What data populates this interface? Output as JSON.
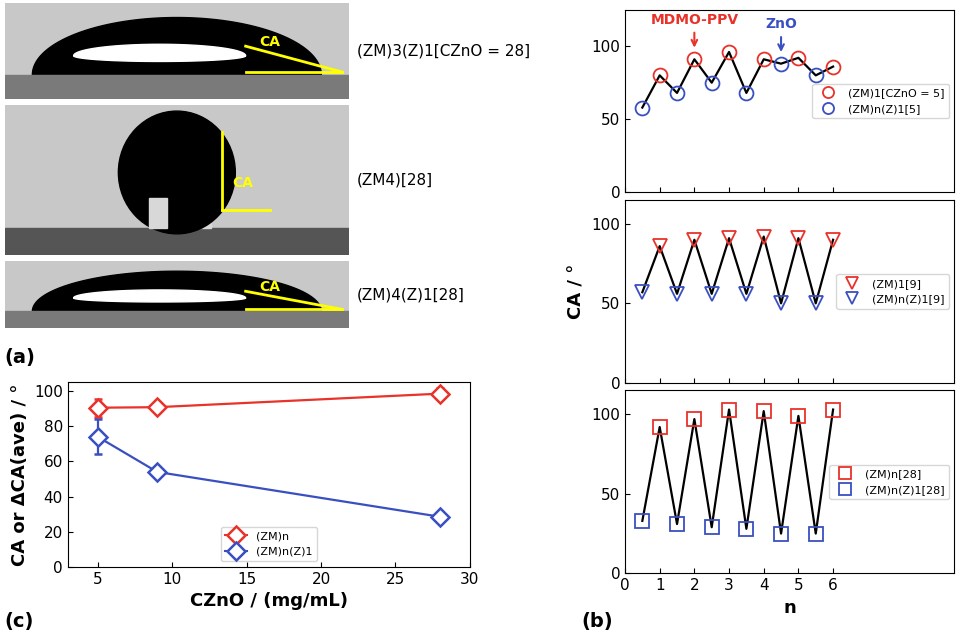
{
  "images": {
    "panel_label": "(a)",
    "items": [
      {
        "label": "(ZM)3(Z)1[CZnO = 28]",
        "angle_label": "CA"
      },
      {
        "label": "(ZM4)[28]",
        "angle_label": "CA"
      },
      {
        "label": "(ZM)4(Z)1[28]",
        "angle_label": "CA"
      }
    ]
  },
  "chart_data": [
    {
      "type": "line",
      "panel_label": "(c)",
      "xlabel": "CZnO / (mg/mL)",
      "ylabel": "CA or ΔCA(ave) / °",
      "xlim": [
        3,
        30
      ],
      "xticks": [
        5,
        10,
        15,
        20,
        25,
        30
      ],
      "ylim": [
        0,
        105
      ],
      "yticks": [
        0,
        20,
        40,
        60,
        80,
        100
      ],
      "legend": "lower center",
      "series": [
        {
          "name": "(ZM)n",
          "color": "#e8322a",
          "marker": "diamond",
          "line_style": "solid",
          "x": [
            5,
            9,
            28
          ],
          "values": [
            90.5,
            90.8,
            98.5
          ],
          "errors": [
            5,
            2,
            3
          ]
        },
        {
          "name": "(ZM)n(Z)1",
          "color": "#3a4fc0",
          "marker": "diamond",
          "line_style": "solid",
          "x": [
            5,
            9,
            28
          ],
          "values": [
            74,
            54,
            28.5
          ],
          "errors": [
            10,
            2,
            2
          ]
        }
      ]
    },
    {
      "type": "scatter",
      "line_style": "solid",
      "color": "#000000",
      "xlim": [
        0,
        9.5
      ],
      "xticks": [
        0,
        1,
        2,
        3,
        4,
        5,
        6
      ],
      "ylim": [
        0,
        125
      ],
      "yticks": [
        0,
        50,
        100
      ],
      "tick_labels": "y",
      "legend": "center right",
      "annotations": [
        {
          "text": "MDMO-PPV",
          "x": 2,
          "color": "#e8322a"
        },
        {
          "text": "ZnO",
          "x": 4.5,
          "color": "#3a4fc0"
        }
      ],
      "series": [
        {
          "name": "(ZM)1[CZnO = 5]",
          "color": "#e8322a",
          "marker": "circle",
          "x": [
            1,
            2,
            3,
            4,
            5,
            6
          ],
          "values": [
            80,
            91,
            96,
            91,
            92,
            86
          ]
        },
        {
          "name": "(ZM)n(Z)1[5]",
          "color": "#3a4fc0",
          "marker": "circle",
          "x": [
            0.5,
            1.5,
            2.5,
            3.5,
            4.5,
            5.5
          ],
          "values": [
            58,
            68,
            75,
            68,
            88,
            80
          ]
        }
      ]
    },
    {
      "type": "scatter",
      "line_style": "solid",
      "color": "#000000",
      "ylabel": "CA / °",
      "xlim": [
        0,
        9.5
      ],
      "xticks": [
        0,
        1,
        2,
        3,
        4,
        5,
        6
      ],
      "ylim": [
        0,
        115
      ],
      "yticks": [
        0,
        50,
        100
      ],
      "tick_labels": "y",
      "legend": "center right",
      "series": [
        {
          "name": "(ZM)1[9]",
          "color": "#e8322a",
          "marker": "triangle_down",
          "x": [
            1,
            2,
            3,
            4,
            5,
            6
          ],
          "values": [
            86,
            90,
            91,
            92,
            91,
            90
          ]
        },
        {
          "name": "(ZM)n(Z)1[9]",
          "color": "#3a4fc0",
          "marker": "triangle_down",
          "x": [
            0.5,
            1.5,
            2.5,
            3.5,
            4.5,
            5.5
          ],
          "values": [
            57,
            56,
            56,
            56,
            50,
            50
          ]
        }
      ]
    },
    {
      "type": "scatter",
      "line_style": "solid",
      "color": "#000000",
      "xlabel": "n",
      "panel_label": "(b)",
      "xlim": [
        0,
        9.5
      ],
      "xticks": [
        0,
        1,
        2,
        3,
        4,
        5,
        6
      ],
      "ylim": [
        0,
        115
      ],
      "yticks": [
        0,
        50,
        100
      ],
      "legend": "center right",
      "series": [
        {
          "name": "(ZM)n[28]",
          "color": "#e8322a",
          "marker": "square",
          "x": [
            1,
            2,
            3,
            4,
            5,
            6
          ],
          "values": [
            92,
            97,
            103,
            102,
            99,
            103
          ]
        },
        {
          "name": "(ZM)n(Z)1[28]",
          "color": "#3a4fc0",
          "marker": "square",
          "x": [
            0.5,
            1.5,
            2.5,
            3.5,
            4.5,
            5.5
          ],
          "values": [
            33,
            31,
            29,
            28,
            25,
            25
          ]
        }
      ]
    }
  ]
}
